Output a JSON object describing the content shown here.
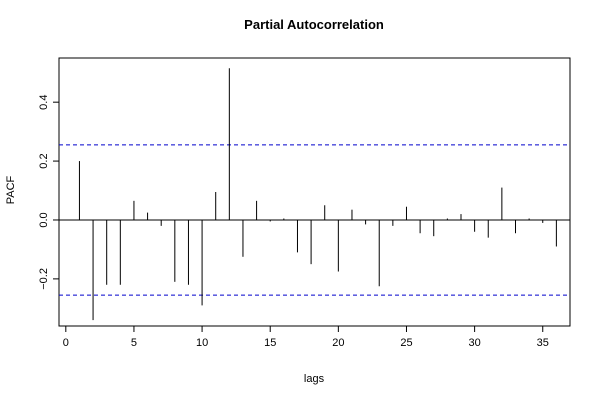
{
  "chart_data": {
    "type": "bar",
    "title": "Partial Autocorrelation",
    "xlabel": "lags",
    "ylabel": "PACF",
    "xlim": [
      -0.5,
      37
    ],
    "ylim": [
      -0.36,
      0.55
    ],
    "xticks": [
      0,
      5,
      10,
      15,
      20,
      25,
      30,
      35
    ],
    "yticks": [
      -0.2,
      0.0,
      0.2,
      0.4
    ],
    "ytick_labels": [
      "−0.2",
      "0.0",
      "0.2",
      "0.4"
    ],
    "confidence_bounds": [
      0.255,
      -0.255
    ],
    "grid": false,
    "lags": [
      1,
      2,
      3,
      4,
      5,
      6,
      7,
      8,
      9,
      10,
      11,
      12,
      13,
      14,
      15,
      16,
      17,
      18,
      19,
      20,
      21,
      22,
      23,
      24,
      25,
      26,
      27,
      28,
      29,
      30,
      31,
      32,
      33,
      34,
      35,
      36
    ],
    "values": [
      0.2,
      -0.34,
      -0.22,
      -0.22,
      0.065,
      0.025,
      -0.02,
      -0.21,
      -0.22,
      -0.29,
      0.095,
      0.515,
      -0.125,
      0.065,
      -0.005,
      0.005,
      -0.11,
      -0.15,
      0.05,
      -0.175,
      0.035,
      -0.015,
      -0.225,
      -0.02,
      0.045,
      -0.045,
      -0.055,
      0.005,
      0.02,
      -0.04,
      -0.06,
      0.11,
      -0.045,
      0.005,
      -0.01,
      -0.09
    ],
    "colors": {
      "bars": "#000000",
      "bounds": "#0000cc",
      "axes": "#000000"
    }
  }
}
